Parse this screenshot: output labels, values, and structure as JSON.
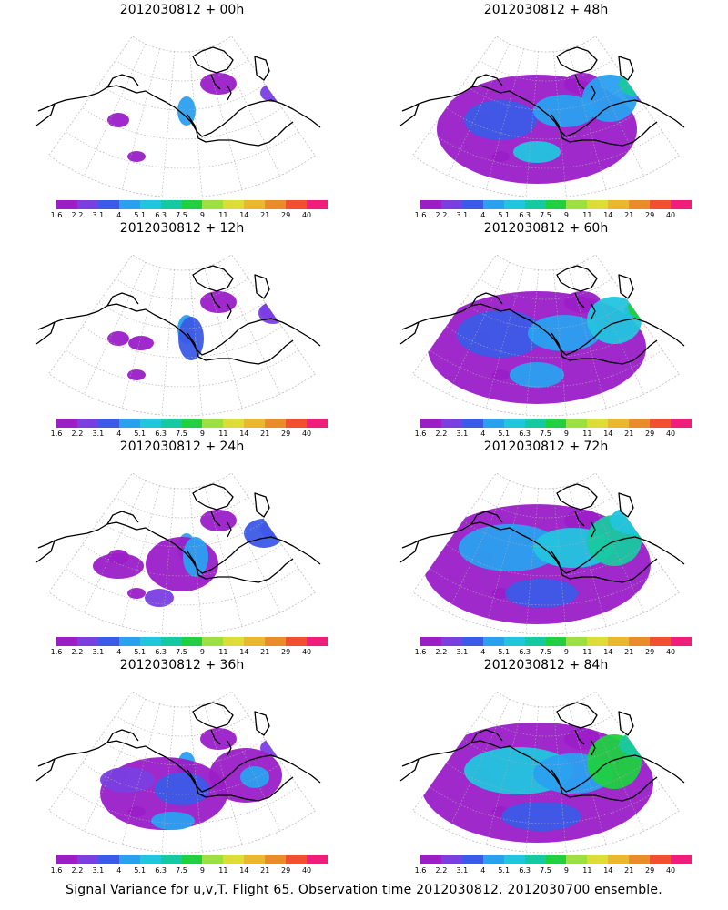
{
  "colorbar": {
    "colors": [
      "#9b1ec8",
      "#7a3fe0",
      "#3c5ae6",
      "#2aa0f0",
      "#22c4de",
      "#18c8a0",
      "#20d040",
      "#9ee040",
      "#dcdc3a",
      "#e8b830",
      "#ec8c28",
      "#f05030",
      "#f01e7a"
    ],
    "labels": [
      "1.6",
      "2.2",
      "3.1",
      "4",
      "5.1",
      "6.3",
      "7.5",
      "9",
      "11",
      "14",
      "21",
      "29",
      "40"
    ]
  },
  "panels": [
    {
      "title": "2012030812 + 00h",
      "intensity": 0
    },
    {
      "title": "2012030812 + 48h",
      "intensity": 4
    },
    {
      "title": "2012030812 + 12h",
      "intensity": 1
    },
    {
      "title": "2012030812 + 60h",
      "intensity": 5
    },
    {
      "title": "2012030812 + 24h",
      "intensity": 2
    },
    {
      "title": "2012030812 + 72h",
      "intensity": 6
    },
    {
      "title": "2012030812 + 36h",
      "intensity": 3
    },
    {
      "title": "2012030812 + 84h",
      "intensity": 7
    }
  ],
  "caption": "Signal Variance for u,v,T. Flight 65. Observation time 2012030812. 2012030700 ensemble."
}
